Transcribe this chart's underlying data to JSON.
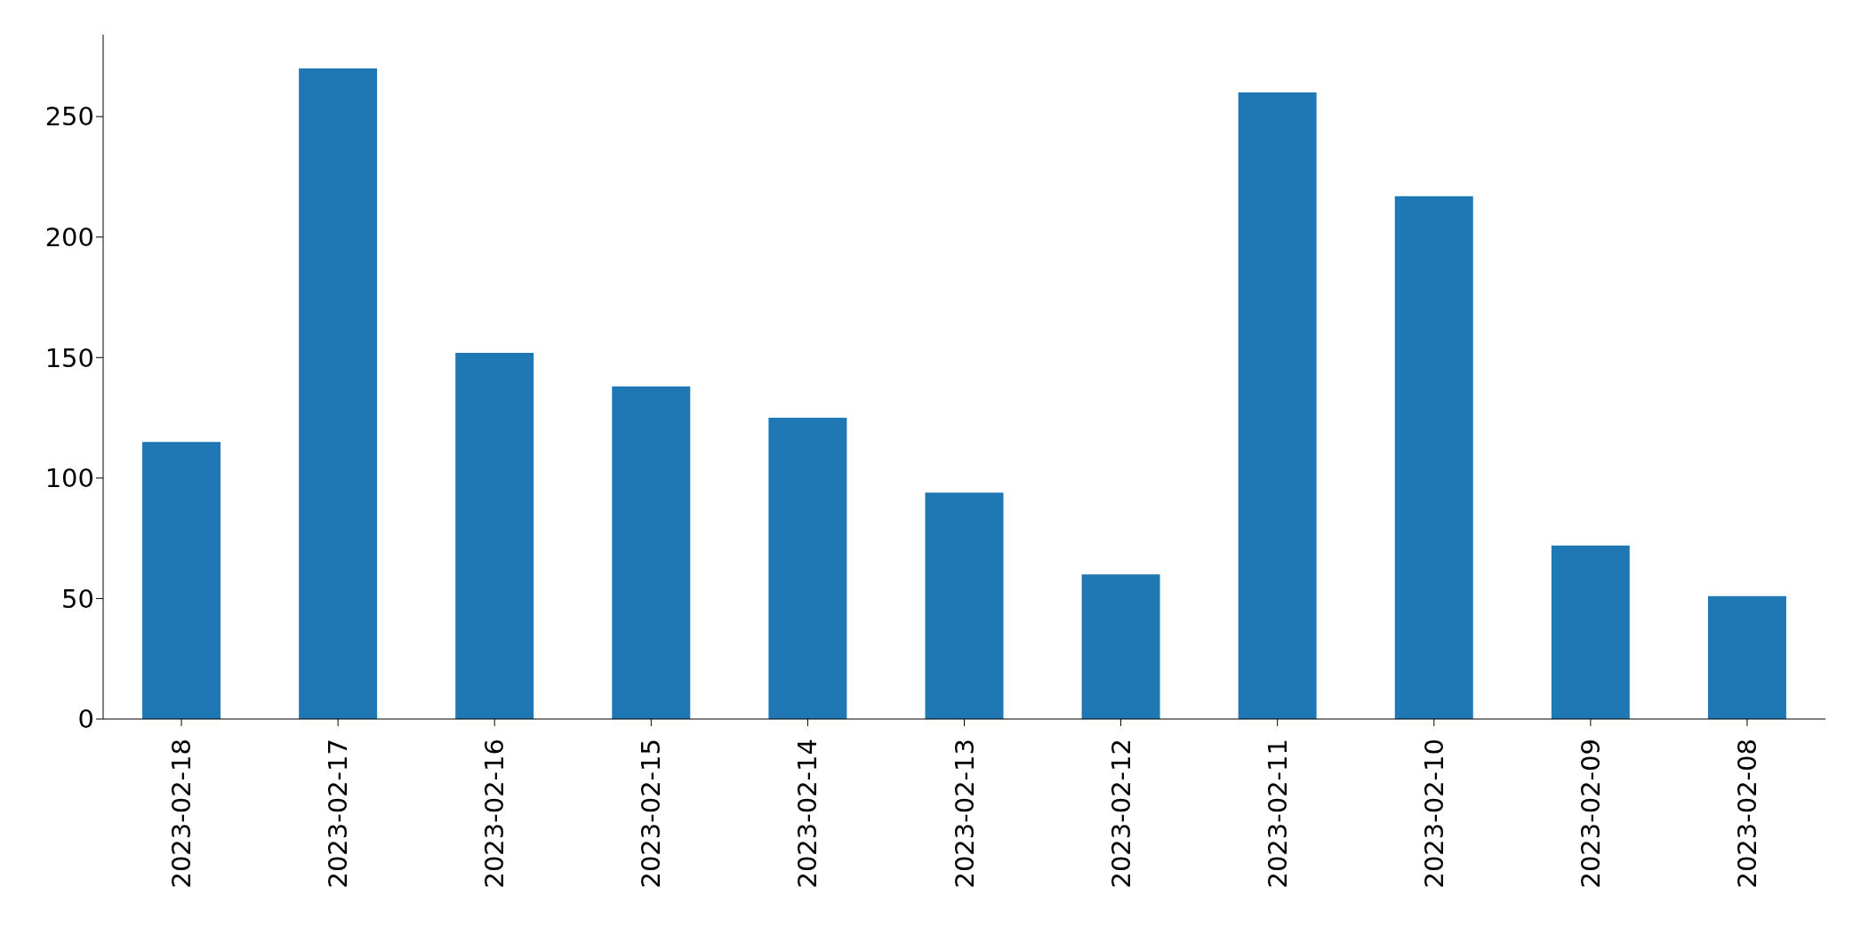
{
  "chart_data": {
    "type": "bar",
    "categories": [
      "2023-02-18",
      "2023-02-17",
      "2023-02-16",
      "2023-02-15",
      "2023-02-14",
      "2023-02-13",
      "2023-02-12",
      "2023-02-11",
      "2023-02-10",
      "2023-02-09",
      "2023-02-08"
    ],
    "values": [
      115,
      270,
      152,
      138,
      125,
      94,
      60,
      260,
      217,
      72,
      51
    ],
    "color": "#1f77b4",
    "ylim": [
      0,
      284
    ],
    "yticks": [
      0,
      50,
      100,
      150,
      200,
      250
    ]
  }
}
